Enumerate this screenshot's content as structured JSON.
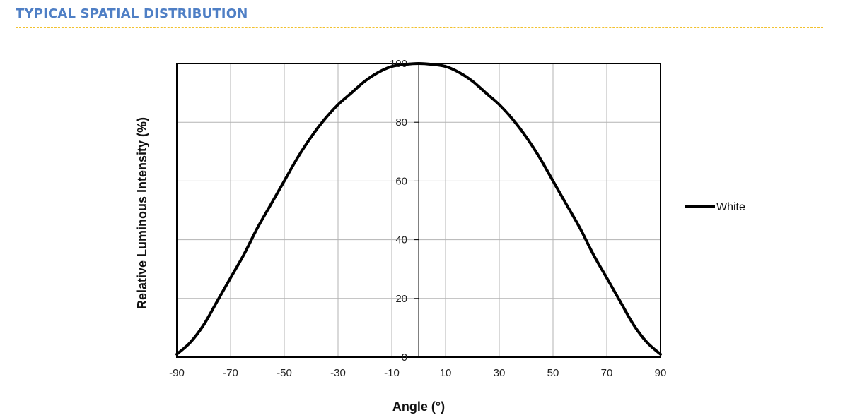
{
  "section": {
    "title": "TYPICAL SPATIAL DISTRIBUTION"
  },
  "colors": {
    "title": "#4f7fc5",
    "divider": "#f2c12e",
    "series_line": "#000000",
    "grid": "#b3b3b3"
  },
  "chart_data": {
    "type": "line",
    "title": "",
    "xlabel": "Angle (°)",
    "ylabel": "Relative Luminous Intensity (%)",
    "xlim": [
      -90,
      90
    ],
    "ylim": [
      0,
      100
    ],
    "x_ticks": [
      -90,
      -70,
      -50,
      -30,
      -10,
      10,
      30,
      50,
      70,
      90
    ],
    "y_ticks": [
      0,
      20,
      40,
      60,
      80,
      100
    ],
    "grid": true,
    "legend": "right",
    "series": [
      {
        "name": "White",
        "color": "#000000",
        "x": [
          -90,
          -85,
          -80,
          -75,
          -70,
          -65,
          -60,
          -55,
          -50,
          -45,
          -40,
          -35,
          -30,
          -25,
          -20,
          -15,
          -10,
          -5,
          0,
          5,
          10,
          15,
          20,
          25,
          30,
          35,
          40,
          45,
          50,
          55,
          60,
          65,
          70,
          75,
          80,
          85,
          90
        ],
        "y": [
          1,
          5,
          11,
          19,
          27,
          35,
          44,
          52,
          60,
          68,
          75,
          81,
          86,
          90,
          94,
          97,
          99,
          99.7,
          100,
          99.7,
          99,
          97,
          94,
          90,
          86,
          81,
          75,
          68,
          60,
          52,
          44,
          35,
          27,
          19,
          11,
          5,
          1
        ]
      }
    ]
  }
}
